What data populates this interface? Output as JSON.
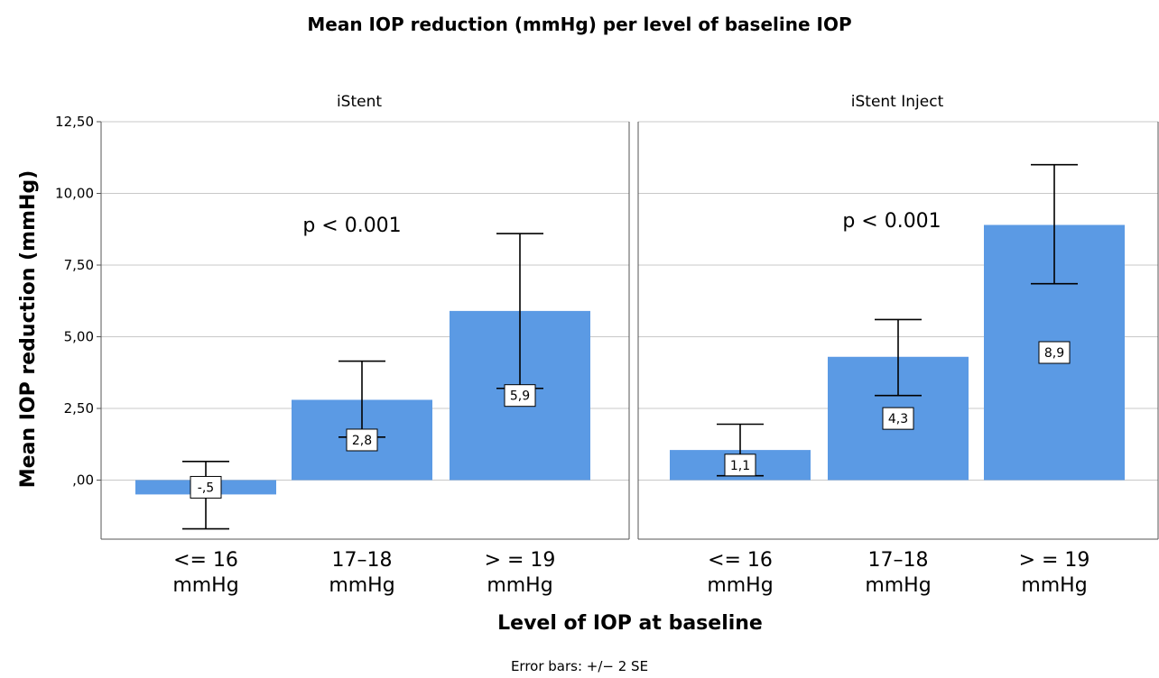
{
  "chart_data": {
    "type": "bar",
    "title": "Mean IOP reduction (mmHg) per level of baseline IOP",
    "xlabel": "Level of IOP at baseline",
    "ylabel": "Mean IOP reduction (mmHg)",
    "ylim": [
      -2.6,
      12.5
    ],
    "yticks": [
      {
        "value": 0,
        "label": ",00"
      },
      {
        "value": 2.5,
        "label": "2,50"
      },
      {
        "value": 5,
        "label": "5,00"
      },
      {
        "value": 7.5,
        "label": "7,50"
      },
      {
        "value": 10,
        "label": "10,00"
      },
      {
        "value": 12.5,
        "label": "12,50"
      }
    ],
    "grid": true,
    "bar_color": "#5b9ae4",
    "categories": [
      {
        "line1": "<= 16",
        "line2": "mmHg"
      },
      {
        "line1": "17–18",
        "line2": "mmHg"
      },
      {
        "line1": "> = 19",
        "line2": "mmHg"
      }
    ],
    "panels": [
      {
        "name": "iStent",
        "values": [
          -0.5,
          2.8,
          5.9
        ],
        "value_labels": [
          "-,5",
          "2,8",
          "5,9"
        ],
        "error_low": [
          -1.7,
          1.5,
          3.2
        ],
        "error_high": [
          0.65,
          4.15,
          8.6
        ],
        "annotation": "p < 0.001"
      },
      {
        "name": "iStent Inject",
        "values": [
          1.05,
          4.3,
          8.9
        ],
        "value_labels": [
          "1,1",
          "4,3",
          "8,9"
        ],
        "error_low": [
          0.15,
          2.95,
          6.85
        ],
        "error_high": [
          1.95,
          5.6,
          11.0
        ],
        "annotation": "p < 0.001"
      }
    ],
    "footnote": "Error bars: +/− 2 SE"
  }
}
